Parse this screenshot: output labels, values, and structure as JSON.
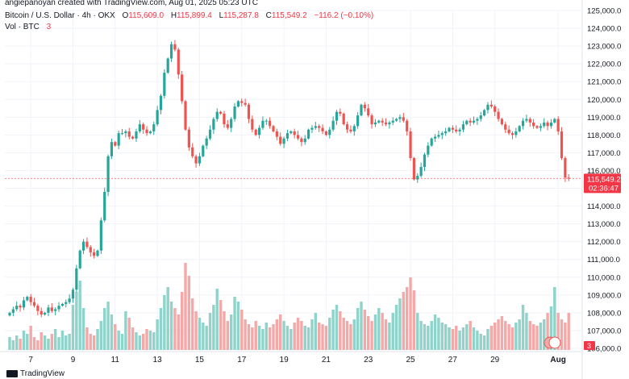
{
  "watermark": "angiepanoyan created with TradingView.com, Aug 01, 2025 05:23 UTC",
  "legend": {
    "symbol": "Bitcoin / U.S. Dollar · 4h · OKX",
    "open_label": "O",
    "open": "115,609.0",
    "high_label": "H",
    "high": "115,899.4",
    "low_label": "L",
    "low": "115,287.8",
    "close_label": "C",
    "close": "115,549.2",
    "change": "−116.2 (−0.10%)",
    "vol_label": "Vol · BTC",
    "vol_value": "3"
  },
  "footer": {
    "brand": "TradingView"
  },
  "colors": {
    "up": "#26a69a",
    "down": "#ef5350",
    "up_vol": "#8fd3cb",
    "down_vol": "#f4a9a8",
    "price_tag": "#f23645"
  },
  "chart_data": {
    "type": "candlestick",
    "y_axis_ticks": [
      "125,000.0",
      "124,000.0",
      "123,000.0",
      "122,000.0",
      "121,000.0",
      "120,000.0",
      "119,000.0",
      "118,000.0",
      "117,000.0",
      "116,000.0",
      "115,000.0",
      "114,000.0",
      "113,000.0",
      "112,000.0",
      "111,000.0",
      "110,000.0",
      "109,000.0",
      "108,000.0",
      "107,000.0",
      "106,000.0"
    ],
    "y_axis_values": [
      125000,
      124000,
      123000,
      122000,
      121000,
      120000,
      119000,
      118000,
      117000,
      116000,
      115000,
      114000,
      113000,
      112000,
      111000,
      110000,
      109000,
      108000,
      107000,
      106000
    ],
    "ylim": [
      106000,
      125000
    ],
    "x_axis_ticks": [
      "7",
      "9",
      "11",
      "13",
      "15",
      "17",
      "19",
      "21",
      "23",
      "25",
      "27",
      "29",
      "Aug"
    ],
    "x_axis_candle_index": [
      6,
      18,
      30,
      42,
      54,
      66,
      78,
      90,
      102,
      114,
      126,
      138,
      156
    ],
    "current_price": "115,549.2",
    "countdown": "02:36:47",
    "volume_axis_label": "3",
    "closes": [
      108000,
      108200,
      108400,
      108300,
      108700,
      108900,
      108600,
      108400,
      108100,
      107900,
      108000,
      108300,
      108100,
      108200,
      108400,
      108500,
      108600,
      108800,
      109300,
      110500,
      111500,
      112000,
      111700,
      111400,
      111200,
      111500,
      113200,
      114800,
      116800,
      117600,
      117400,
      118100,
      118100,
      118200,
      117900,
      117800,
      118200,
      118600,
      118300,
      118100,
      118200,
      118600,
      119400,
      120200,
      121500,
      122300,
      123100,
      122800,
      121400,
      119900,
      118300,
      117300,
      116800,
      116400,
      116800,
      117400,
      117800,
      118300,
      118900,
      119300,
      119200,
      118600,
      118400,
      118900,
      119600,
      119900,
      119800,
      119700,
      118900,
      118300,
      118000,
      118400,
      118800,
      118800,
      118500,
      118200,
      117900,
      117500,
      117800,
      118100,
      118200,
      118000,
      117800,
      117600,
      117800,
      118300,
      118400,
      118500,
      118400,
      118200,
      118000,
      118300,
      118800,
      119300,
      119200,
      118600,
      118300,
      118200,
      118500,
      119100,
      119700,
      119500,
      119100,
      118600,
      118700,
      118800,
      118700,
      118600,
      118700,
      118800,
      118900,
      119000,
      118800,
      118200,
      116700,
      115500,
      115700,
      116200,
      116900,
      117400,
      117800,
      117900,
      118000,
      118100,
      118200,
      118400,
      118300,
      118200,
      118300,
      118600,
      118800,
      118700,
      118800,
      118900,
      119100,
      119400,
      119700,
      119600,
      119300,
      118900,
      118600,
      118300,
      118100,
      118000,
      118200,
      118500,
      118800,
      118900,
      118700,
      118500,
      118400,
      118500,
      118700,
      118500,
      118700,
      118900,
      118200,
      116700,
      115600,
      115550
    ],
    "volumes": [
      0.8,
      0.6,
      0.9,
      0.7,
      1.2,
      1.0,
      1.5,
      0.8,
      0.6,
      1.1,
      0.9,
      0.7,
      1.0,
      1.3,
      0.8,
      1.2,
      0.9,
      1.0,
      2.8,
      3.6,
      4.3,
      2.6,
      1.4,
      1.0,
      0.9,
      1.3,
      1.8,
      2.6,
      3.0,
      2.2,
      1.6,
      1.2,
      1.0,
      2.4,
      2.0,
      1.4,
      1.1,
      0.9,
      1.0,
      1.3,
      1.2,
      1.1,
      1.9,
      2.6,
      3.4,
      3.9,
      3.0,
      2.6,
      2.2,
      3.6,
      5.4,
      4.6,
      3.2,
      2.4,
      2.0,
      1.7,
      1.5,
      2.3,
      2.8,
      3.8,
      3.1,
      2.4,
      1.8,
      2.2,
      3.3,
      3.0,
      2.5,
      1.9,
      1.6,
      1.4,
      1.8,
      1.5,
      1.3,
      1.7,
      1.4,
      1.6,
      1.9,
      2.2,
      1.8,
      1.5,
      1.3,
      1.7,
      2.0,
      1.8,
      1.5,
      1.4,
      1.9,
      2.3,
      1.7,
      1.6,
      1.5,
      2.0,
      2.5,
      2.8,
      2.4,
      2.0,
      1.8,
      1.6,
      1.9,
      2.6,
      3.0,
      2.5,
      2.1,
      1.8,
      2.2,
      2.6,
      2.3,
      1.9,
      1.7,
      2.3,
      2.8,
      3.2,
      3.6,
      3.9,
      4.5,
      3.7,
      2.3,
      1.8,
      1.6,
      1.5,
      1.8,
      2.2,
      2.0,
      1.7,
      1.6,
      1.4,
      1.3,
      1.5,
      1.2,
      1.4,
      1.6,
      1.8,
      1.4,
      1.2,
      1.0,
      0.9,
      1.3,
      1.5,
      1.7,
      1.9,
      2.1,
      1.8,
      1.6,
      1.4,
      1.7,
      1.9,
      2.8,
      2.3,
      1.8,
      1.6,
      1.5,
      1.7,
      1.9,
      2.3,
      2.7,
      3.9,
      2.3,
      1.9,
      1.7,
      2.3,
      2.9,
      3.3,
      4.3,
      0.3
    ]
  }
}
